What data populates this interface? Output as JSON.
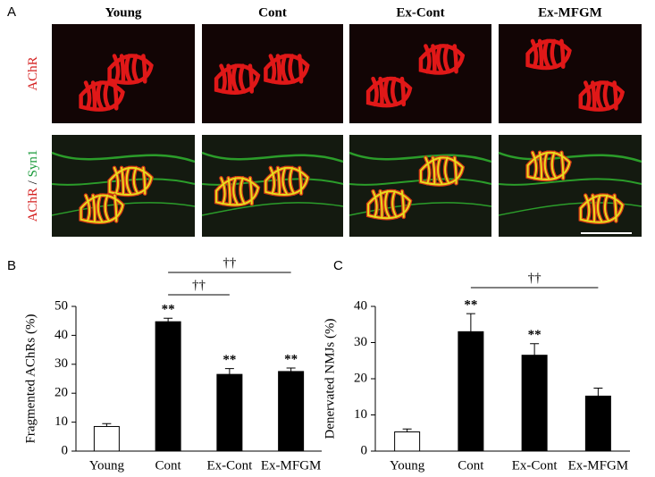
{
  "panel_a": {
    "label": "A",
    "columns": [
      "Young",
      "Cont",
      "Ex-Cont",
      "Ex-MFGM"
    ],
    "rows": [
      [
        {
          "text": "AChR",
          "color": "#d42020"
        }
      ],
      [
        {
          "text": "AChR",
          "color": "#d42020"
        },
        {
          "text": " / ",
          "color": "#000000"
        },
        {
          "text": "Syn1",
          "color": "#1a9a3a"
        }
      ]
    ]
  },
  "chart_data": [
    {
      "type": "bar",
      "panel": "B",
      "y_label": "Fragmented AChRs (%)",
      "categories": [
        "Young",
        "Cont",
        "Ex-Cont",
        "Ex-MFGM"
      ],
      "values": [
        8.5,
        44.7,
        26.5,
        27.5
      ],
      "errors": [
        1.0,
        1.2,
        2.0,
        1.2
      ],
      "colors": [
        "#ffffff",
        "#000000",
        "#000000",
        "#000000"
      ],
      "stars": [
        null,
        "**",
        "**",
        "**"
      ],
      "brackets": [
        {
          "from": "Cont",
          "to": "Ex-Cont",
          "label": "††"
        },
        {
          "from": "Cont",
          "to": "Ex-MFGM",
          "label": "††"
        }
      ],
      "ylim": [
        0,
        50
      ],
      "yticks": [
        0,
        10,
        20,
        30,
        40,
        50
      ]
    },
    {
      "type": "bar",
      "panel": "C",
      "y_label": "Denervated NMJs (%)",
      "categories": [
        "Young",
        "Cont",
        "Ex-Cont",
        "Ex-MFGM"
      ],
      "values": [
        5.3,
        33.0,
        26.5,
        15.2
      ],
      "errors": [
        0.8,
        5.0,
        3.2,
        2.2
      ],
      "colors": [
        "#ffffff",
        "#000000",
        "#000000",
        "#000000"
      ],
      "stars": [
        null,
        "**",
        "**",
        null
      ],
      "brackets": [
        {
          "from": "Cont",
          "to": "Ex-MFGM",
          "label": "††"
        }
      ],
      "ylim": [
        0,
        40
      ],
      "yticks": [
        0,
        10,
        20,
        30,
        40
      ]
    }
  ]
}
